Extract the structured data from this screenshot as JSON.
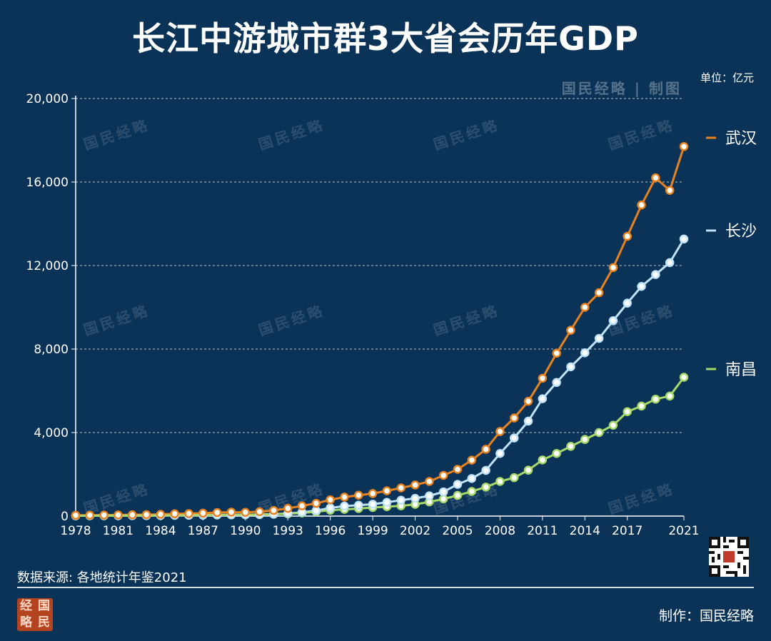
{
  "title": "长江中游城市群3大省会历年GDP",
  "unit_label": "单位：亿元",
  "watermark": "国民经略",
  "watermark_top": "国民经略 | 制图",
  "source": "数据来源: 各地统计年鉴2021",
  "credit": "制作：国民经略",
  "logo_chars": [
    "经",
    "国",
    "略",
    "民"
  ],
  "colors": {
    "background": "#0b3358",
    "wuhan": "#e8821e",
    "changsha": "#bfe3fa",
    "nanchang": "#a6d96a"
  },
  "chart_data": {
    "type": "line",
    "title": "长江中游城市群3大省会历年GDP",
    "unit": "亿元",
    "x": [
      1978,
      1979,
      1980,
      1981,
      1982,
      1983,
      1984,
      1985,
      1986,
      1987,
      1988,
      1989,
      1990,
      1991,
      1992,
      1993,
      1994,
      1995,
      1996,
      1997,
      1998,
      1999,
      2000,
      2001,
      2002,
      2003,
      2004,
      2005,
      2006,
      2007,
      2008,
      2009,
      2010,
      2011,
      2012,
      2013,
      2014,
      2015,
      2016,
      2017,
      2018,
      2019,
      2020,
      2021
    ],
    "x_tick_labels": [
      "1978",
      "1981",
      "1984",
      "1987",
      "1990",
      "1993",
      "1996",
      "1999",
      "2002",
      "2005",
      "2008",
      "2011",
      "2014",
      "2017",
      "2021"
    ],
    "y_ticks": [
      0,
      4000,
      8000,
      12000,
      16000,
      20000
    ],
    "y_tick_labels": [
      "0",
      "4,000",
      "8,000",
      "12,000",
      "16,000",
      "20,000"
    ],
    "ylim": [
      0,
      20000
    ],
    "grid": "horizontal dashed",
    "legend_position": "right, beside line ends",
    "series": [
      {
        "name": "武汉",
        "color": "#e8821e",
        "values": [
          40,
          44,
          50,
          56,
          62,
          70,
          84,
          110,
          120,
          140,
          170,
          190,
          180,
          210,
          270,
          370,
          490,
          610,
          780,
          910,
          1000,
          1080,
          1210,
          1350,
          1490,
          1660,
          1950,
          2240,
          2680,
          3200,
          4050,
          4700,
          5500,
          6600,
          7800,
          8900,
          10000,
          10700,
          11900,
          13400,
          14900,
          16200,
          15600,
          17700
        ]
      },
      {
        "name": "长沙",
        "color": "#bfe3fa",
        "values": [
          15,
          18,
          20,
          22,
          24,
          26,
          30,
          38,
          42,
          48,
          56,
          62,
          66,
          76,
          96,
          128,
          185,
          260,
          390,
          480,
          520,
          570,
          660,
          760,
          850,
          970,
          1160,
          1520,
          1800,
          2190,
          3000,
          3740,
          4550,
          5620,
          6400,
          7150,
          7820,
          8510,
          9360,
          10200,
          11000,
          11570,
          12140,
          13270
        ]
      },
      {
        "name": "南昌",
        "color": "#a6d96a",
        "values": [
          15,
          16,
          18,
          20,
          22,
          24,
          28,
          34,
          38,
          44,
          52,
          58,
          60,
          70,
          88,
          110,
          150,
          210,
          280,
          320,
          360,
          410,
          450,
          490,
          560,
          680,
          820,
          990,
          1180,
          1390,
          1660,
          1840,
          2200,
          2690,
          3000,
          3340,
          3670,
          4000,
          4350,
          5000,
          5270,
          5600,
          5750,
          6650
        ]
      }
    ]
  }
}
